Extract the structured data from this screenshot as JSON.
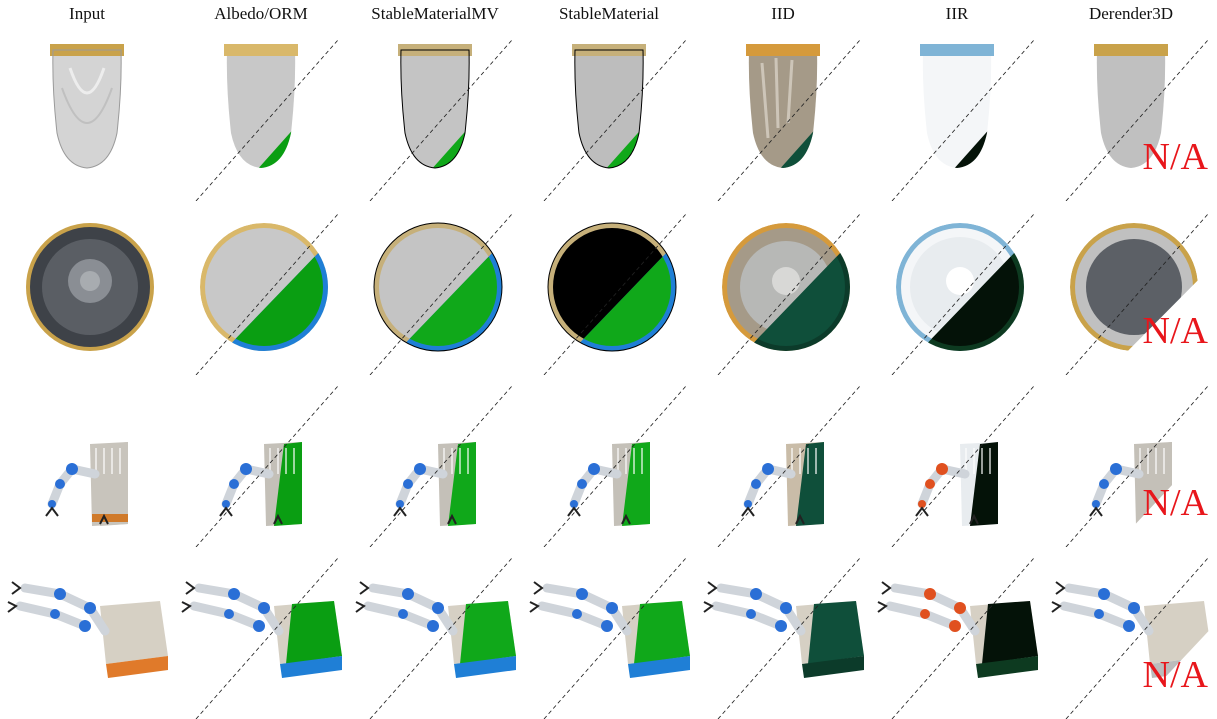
{
  "columns": [
    {
      "label": "Input"
    },
    {
      "label": "Albedo/ORM"
    },
    {
      "label": "StableMaterialMV"
    },
    {
      "label": "StableMaterial"
    },
    {
      "label": "IID"
    },
    {
      "label": "IIR"
    },
    {
      "label": "Derender3D"
    }
  ],
  "rows": [
    {
      "object": "glass-vase"
    },
    {
      "object": "bowl"
    },
    {
      "object": "robot-arm-pallet-angled"
    },
    {
      "object": "robot-arm-pallet-side"
    }
  ],
  "not_available_label": "N/A",
  "colors": {
    "gold": "#c9a24a",
    "neutral_gray": "#c8c8c8",
    "orm_green": "#0a9e12",
    "metal_blue": "#1f7fd6",
    "na_red": "#e8161b",
    "dark_green": "#0b3f22"
  }
}
